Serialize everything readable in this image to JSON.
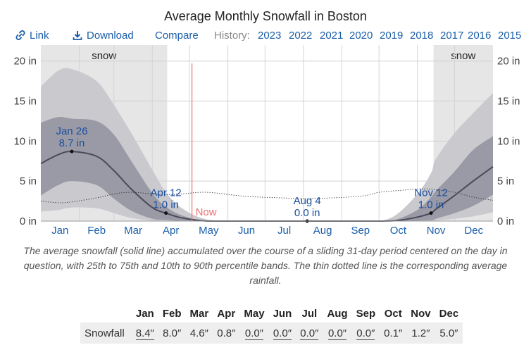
{
  "title": "Average Monthly Snowfall in Boston",
  "toolbar": {
    "link_label": "Link",
    "download_label": "Download",
    "compare_label": "Compare",
    "history_label": "History:",
    "years": [
      "2023",
      "2022",
      "2021",
      "2020",
      "2019",
      "2018",
      "2017",
      "2016",
      "2015"
    ]
  },
  "chart_data": {
    "type": "area",
    "x_unit": "day of year",
    "y_unit": "in",
    "months": [
      "Jan",
      "Feb",
      "Mar",
      "Apr",
      "May",
      "Jun",
      "Jul",
      "Aug",
      "Sep",
      "Oct",
      "Nov",
      "Dec"
    ],
    "ylim": [
      0,
      22
    ],
    "y_ticks": [
      0,
      5,
      10,
      15,
      20
    ],
    "y_tick_labels": [
      "0 in",
      "5 in",
      "10 in",
      "15 in",
      "20 in"
    ],
    "grid": true,
    "snow_season": [
      {
        "label": "snow",
        "start_day": 1,
        "end_day": 103
      },
      {
        "label": "snow",
        "start_day": 318,
        "end_day": 366
      }
    ],
    "now": {
      "label": "Now",
      "day": 123
    },
    "series": {
      "x": [
        1,
        15,
        26,
        46,
        60,
        74,
        91,
        102,
        115,
        135,
        166,
        196,
        216,
        258,
        274,
        288,
        305,
        316,
        320,
        335,
        350,
        366
      ],
      "average": [
        7.2,
        8.3,
        8.7,
        8.1,
        6.3,
        4.0,
        1.7,
        1.0,
        0.4,
        0.0,
        0.0,
        0.0,
        0.0,
        0.0,
        0.0,
        0.05,
        0.5,
        1.0,
        1.5,
        3.2,
        5.0,
        6.8
      ],
      "p25": [
        3.2,
        4.5,
        5.0,
        4.5,
        2.8,
        1.3,
        0.3,
        0.15,
        0.0,
        0.0,
        0.0,
        0.0,
        0.0,
        0.0,
        0.0,
        0.0,
        0.05,
        0.1,
        0.3,
        1.0,
        1.9,
        3.3
      ],
      "p75": [
        12.3,
        13.0,
        12.8,
        12.5,
        10.8,
        7.5,
        3.5,
        1.8,
        0.7,
        0.0,
        0.0,
        0.0,
        0.0,
        0.0,
        0.0,
        0.2,
        1.4,
        3.0,
        3.8,
        6.2,
        8.9,
        10.6
      ],
      "p10": [
        1.2,
        1.4,
        1.7,
        1.6,
        1.0,
        0.4,
        0.05,
        0.0,
        0.0,
        0.0,
        0.0,
        0.0,
        0.0,
        0.0,
        0.0,
        0.0,
        0.0,
        0.0,
        0.05,
        0.3,
        0.6,
        1.1
      ],
      "p90": [
        16.8,
        18.8,
        19.0,
        17.5,
        14.5,
        11.0,
        6.4,
        3.6,
        1.6,
        0.2,
        0.0,
        0.0,
        0.0,
        0.0,
        0.0,
        0.8,
        3.4,
        6.0,
        7.8,
        11.0,
        13.5,
        16.0
      ],
      "rainfall": [
        2.5,
        2.3,
        2.4,
        2.9,
        3.4,
        3.6,
        3.4,
        3.3,
        3.4,
        3.6,
        3.1,
        2.9,
        2.8,
        3.1,
        3.6,
        3.8,
        4.0,
        4.0,
        3.9,
        3.6,
        3.0,
        2.6
      ]
    },
    "annotations": [
      {
        "date": "Jan 26",
        "value": "8.7 in",
        "day": 26,
        "y": 8.7
      },
      {
        "date": "Apr 12",
        "value": "1.0 in",
        "day": 102,
        "y": 1.0
      },
      {
        "date": "Aug 4",
        "value": "0.0 in",
        "day": 216,
        "y": 0.0
      },
      {
        "date": "Nov 12",
        "value": "1.0 in",
        "day": 316,
        "y": 1.0
      }
    ]
  },
  "caption": "The average snowfall (solid line) accumulated over the course of a sliding 31-day period centered on the day in question, with 25th to 75th and 10th to 90th percentile bands. The thin dotted line is the corresponding average rainfall.",
  "table": {
    "headers": [
      "Jan",
      "Feb",
      "Mar",
      "Apr",
      "May",
      "Jun",
      "Jul",
      "Aug",
      "Sep",
      "Oct",
      "Nov",
      "Dec"
    ],
    "row_label": "Snowfall",
    "values": [
      "8.4″",
      "8.0″",
      "4.6″",
      "0.8″",
      "0.0″",
      "0.0″",
      "0.0″",
      "0.0″",
      "0.0″",
      "0.1″",
      "1.2″",
      "5.0″"
    ],
    "underlined": [
      true,
      false,
      false,
      false,
      true,
      true,
      true,
      true,
      true,
      false,
      false,
      false
    ]
  },
  "colors": {
    "snow_shade": "#e6e6e6",
    "band_10_90": "#c9c9ce",
    "band_25_75": "#9a9aa6",
    "average_line": "#4a4a58",
    "now_line": "#f07070",
    "link": "#1a5ea8",
    "annotation_text": "#1a4fa0"
  }
}
